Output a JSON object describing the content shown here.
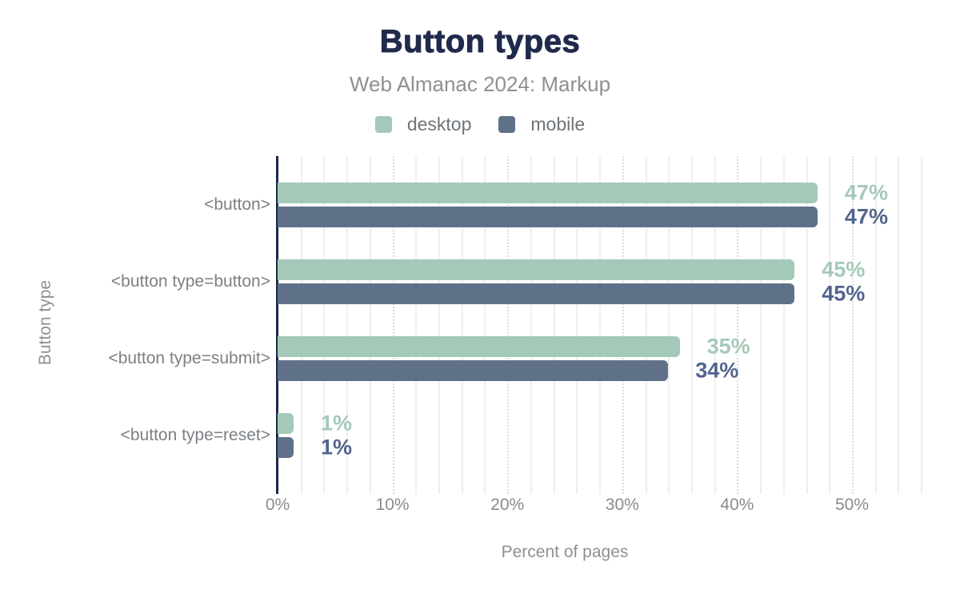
{
  "chart_data": {
    "type": "bar",
    "orientation": "horizontal",
    "title": "Button types",
    "subtitle": "Web Almanac 2024: Markup",
    "xlabel": "Percent of pages",
    "ylabel": "Button type",
    "categories": [
      "<button>",
      "<button type=button>",
      "<button type=submit>",
      "<button type=reset>"
    ],
    "series": [
      {
        "name": "desktop",
        "color": "#a5c9b8",
        "label_color": "#a5c9b8",
        "values": [
          47,
          45,
          35,
          1
        ],
        "labels": [
          "47%",
          "45%",
          "35%",
          "1%"
        ]
      },
      {
        "name": "mobile",
        "color": "#5f7189",
        "label_color": "#52648c",
        "values": [
          47,
          45,
          34,
          1
        ],
        "labels": [
          "47%",
          "45%",
          "34%",
          "1%"
        ]
      }
    ],
    "xlim": [
      0,
      56
    ],
    "xticks": [
      {
        "value": 0,
        "label": "0%"
      },
      {
        "value": 10,
        "label": "10%"
      },
      {
        "value": 20,
        "label": "20%"
      },
      {
        "value": 30,
        "label": "30%"
      },
      {
        "value": 40,
        "label": "40%"
      },
      {
        "value": 50,
        "label": "50%"
      }
    ],
    "grid": {
      "minor_step": 2,
      "major_step": 10,
      "grid_on": true
    },
    "legend_position": "top"
  },
  "colors": {
    "title": "#202a4c",
    "axis_line": "#1b2a49",
    "grid_minor": "#efefef",
    "grid_major": "#dcdcdc",
    "muted_text": "#8d9093"
  }
}
